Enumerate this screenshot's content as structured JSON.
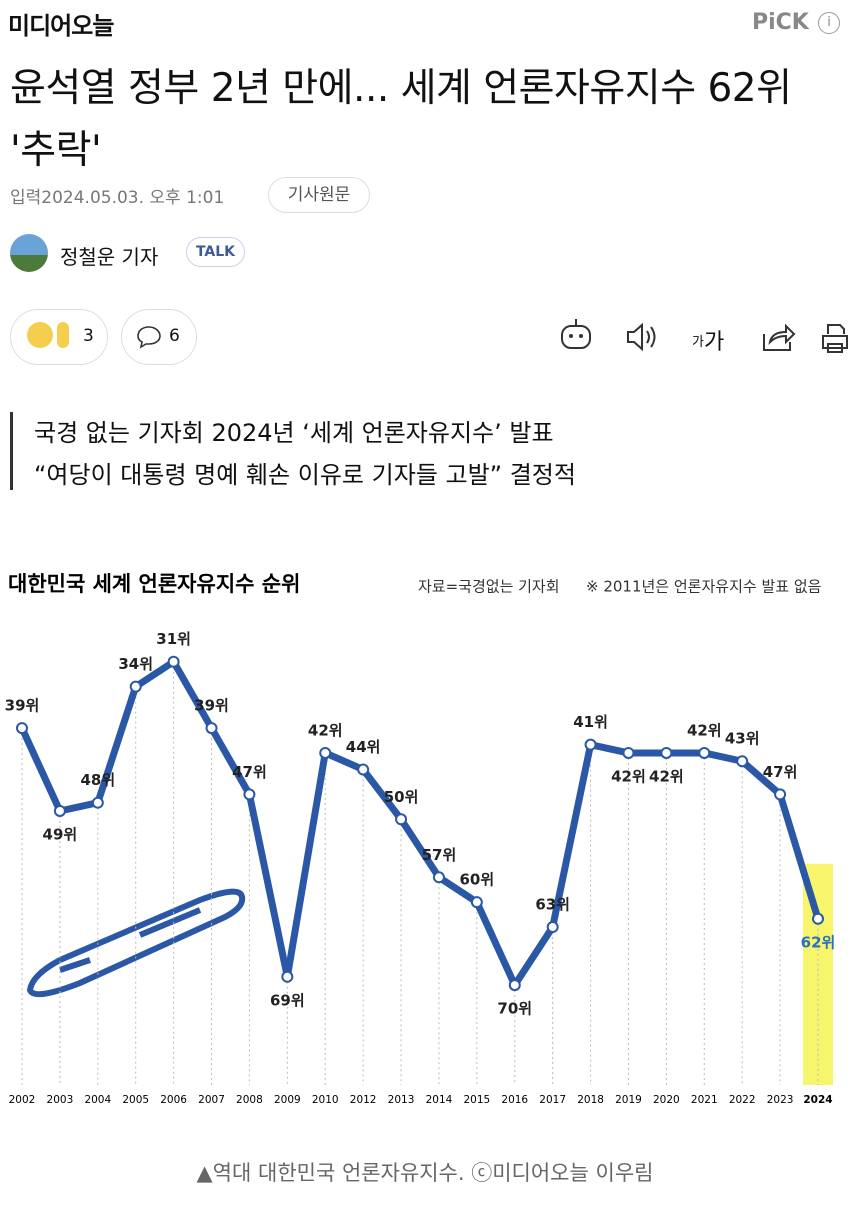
{
  "header": {
    "logo": "미디어오늘",
    "pick": "PiCK",
    "info": "i"
  },
  "article": {
    "title": "윤석열 정부 2년 만에... 세계 언론자유지수 62위 '추락'",
    "date": "입력2024.05.03. 오후 1:01",
    "original": "기사원문",
    "reporter": "정철운 기자",
    "talk": "TALK",
    "reactions": 3,
    "comments": 6,
    "font_small": "가",
    "font_large": "가",
    "subtitles": [
      "국경 없는 기자회 2024년 ‘세계 언론자유지수’ 발표",
      "“여당이 대통령 명예 훼손 이유로 기자들 고발” 결정적"
    ],
    "caption": "▲역대 대한민국 언론자유지수. ⓒ미디어오늘 이우림"
  },
  "chart_data": {
    "type": "line",
    "title": "대한민국 세계 언론자유지수 순위",
    "source": "자료=국경없는 기자회",
    "note": "※ 2011년은 언론자유지수 발표 없음",
    "categories": [
      "2002",
      "2003",
      "2004",
      "2005",
      "2006",
      "2007",
      "2008",
      "2009",
      "2010",
      "2012",
      "2013",
      "2014",
      "2015",
      "2016",
      "2017",
      "2018",
      "2019",
      "2020",
      "2021",
      "2022",
      "2023",
      "2024"
    ],
    "values": [
      39,
      49,
      48,
      34,
      31,
      39,
      47,
      69,
      42,
      44,
      50,
      57,
      60,
      70,
      63,
      41,
      42,
      42,
      42,
      43,
      47,
      62
    ],
    "value_labels": [
      "39위",
      "49위",
      "48위",
      "34위",
      "31위",
      "39위",
      "47위",
      "69위",
      "42위",
      "44위",
      "50위",
      "57위",
      "60위",
      "70위",
      "63위",
      "41위",
      "42위",
      "42위",
      "42위",
      "43위",
      "47위",
      "62위"
    ],
    "color": "#2a57a6",
    "highlight_color": "#f6f56b",
    "highlight_label_color": "#2a6fc0",
    "ylim": [
      80,
      25
    ]
  }
}
